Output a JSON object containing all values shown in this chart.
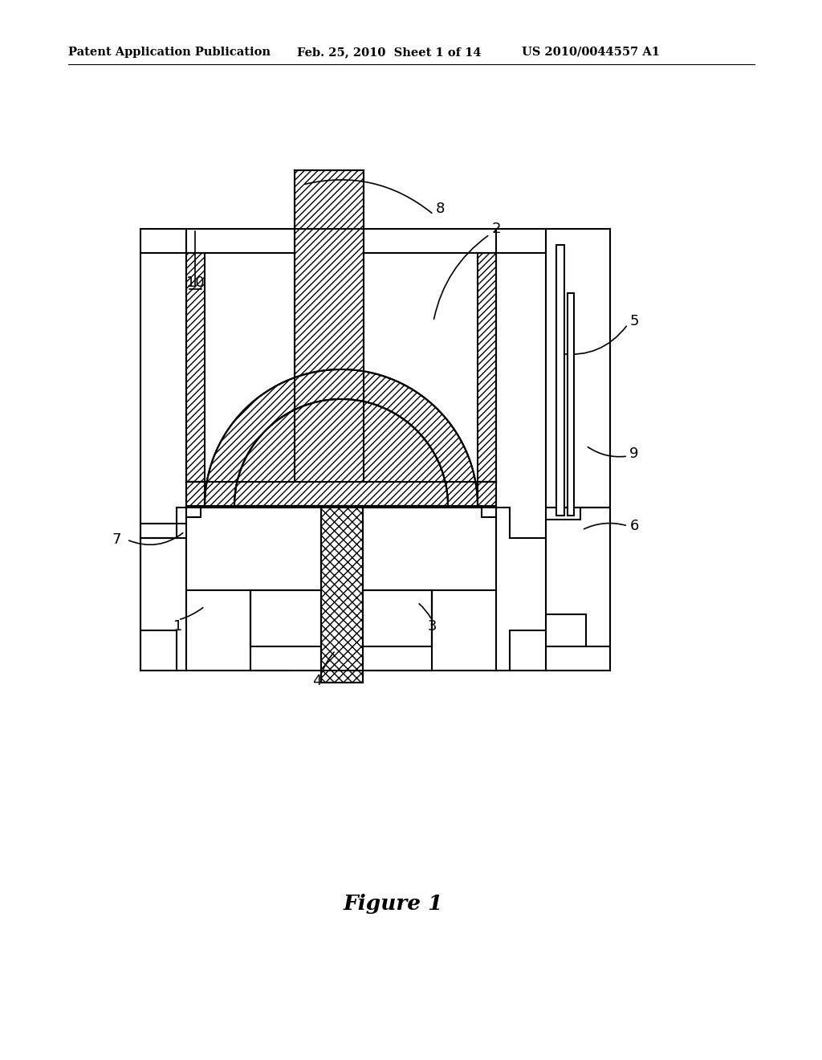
{
  "bg_color": "#ffffff",
  "line_color": "#000000",
  "header_left": "Patent Application Publication",
  "header_mid": "Feb. 25, 2010  Sheet 1 of 14",
  "header_right": "US 2010/0044557 A1",
  "figure_label": "Figure 1"
}
